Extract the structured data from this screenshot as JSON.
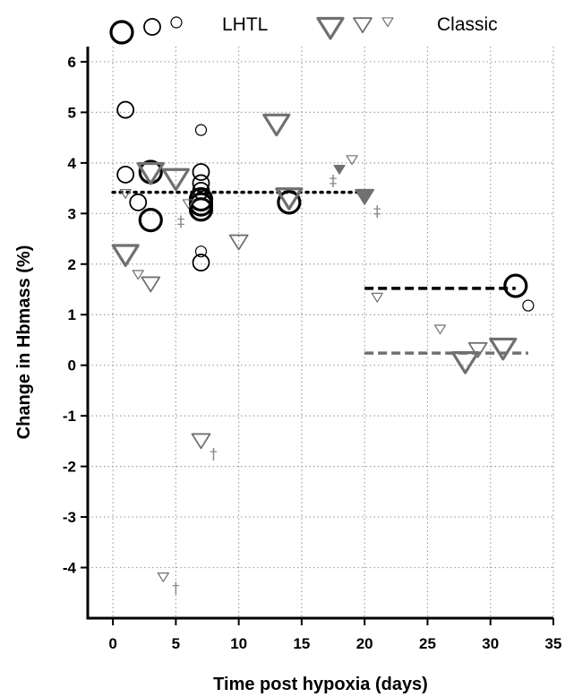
{
  "chart_data": {
    "type": "scatter",
    "title": "",
    "xlabel": "Time post hypoxia  (days)",
    "ylabel": "Change in Hbmass (%)",
    "xlim": [
      -2,
      35
    ],
    "ylim": [
      -5,
      6.3
    ],
    "xticks": [
      0,
      5,
      10,
      15,
      20,
      25,
      30,
      35
    ],
    "yticks": [
      -4,
      -3,
      -2,
      -1,
      0,
      1,
      2,
      3,
      4,
      5,
      6
    ],
    "grid": true,
    "legend": {
      "placement": "top",
      "entries": [
        {
          "label": "LHTL",
          "marker": "circle",
          "sizes": [
            "large",
            "medium",
            "small"
          ]
        },
        {
          "label": "Classic",
          "marker": "triangle-down",
          "sizes": [
            "large",
            "medium",
            "small"
          ]
        }
      ]
    },
    "colors": {
      "lhtl": "#000000",
      "classic": "#707070",
      "dagger": "#8a8a8a",
      "grid": "#a0a0a0"
    },
    "series": [
      {
        "name": "LHTL",
        "marker": "circle",
        "points": [
          {
            "x": 1,
            "y": 5.05,
            "size": "medium"
          },
          {
            "x": 1,
            "y": 3.77,
            "size": "medium"
          },
          {
            "x": 2,
            "y": 3.22,
            "size": "medium"
          },
          {
            "x": 3,
            "y": 3.82,
            "size": "large"
          },
          {
            "x": 3,
            "y": 2.87,
            "size": "large"
          },
          {
            "x": 7,
            "y": 3.82,
            "size": "medium"
          },
          {
            "x": 7,
            "y": 3.6,
            "size": "medium"
          },
          {
            "x": 7,
            "y": 3.45,
            "size": "medium"
          },
          {
            "x": 7,
            "y": 3.28,
            "size": "large"
          },
          {
            "x": 7,
            "y": 3.18,
            "size": "large"
          },
          {
            "x": 7,
            "y": 3.08,
            "size": "large"
          },
          {
            "x": 7,
            "y": 4.65,
            "size": "small"
          },
          {
            "x": 7,
            "y": 2.25,
            "size": "small"
          },
          {
            "x": 7,
            "y": 2.03,
            "size": "medium"
          },
          {
            "x": 14,
            "y": 3.22,
            "size": "large"
          },
          {
            "x": 32,
            "y": 1.57,
            "size": "large"
          },
          {
            "x": 33,
            "y": 1.18,
            "size": "small"
          }
        ]
      },
      {
        "name": "Classic",
        "marker": "triangle-down",
        "points": [
          {
            "x": 1,
            "y": 2.2,
            "size": "large"
          },
          {
            "x": 1,
            "y": 3.4,
            "size": "small"
          },
          {
            "x": 2,
            "y": 1.8,
            "size": "small"
          },
          {
            "x": 3,
            "y": 3.82,
            "size": "large"
          },
          {
            "x": 3,
            "y": 1.62,
            "size": "medium"
          },
          {
            "x": 5,
            "y": 3.7,
            "size": "large"
          },
          {
            "x": 6,
            "y": 3.2,
            "size": "small"
          },
          {
            "x": 7,
            "y": -1.48,
            "size": "medium"
          },
          {
            "x": 10,
            "y": 2.45,
            "size": "medium"
          },
          {
            "x": 13,
            "y": 4.78,
            "size": "large"
          },
          {
            "x": 14,
            "y": 3.32,
            "size": "large"
          },
          {
            "x": 4,
            "y": -4.18,
            "size": "small"
          },
          {
            "x": 18,
            "y": 3.88,
            "size": "small",
            "filled": true
          },
          {
            "x": 19,
            "y": 4.07,
            "size": "small"
          },
          {
            "x": 20,
            "y": 3.35,
            "size": "medium",
            "filled": true
          },
          {
            "x": 21,
            "y": 1.35,
            "size": "small"
          },
          {
            "x": 26,
            "y": 0.72,
            "size": "small"
          },
          {
            "x": 28,
            "y": 0.08,
            "size": "large"
          },
          {
            "x": 29,
            "y": 0.32,
            "size": "medium"
          },
          {
            "x": 31,
            "y": 0.35,
            "size": "large"
          }
        ]
      }
    ],
    "annotations": [
      {
        "symbol": "‡",
        "x": 17.5,
        "y": 3.65
      },
      {
        "symbol": "‡",
        "x": 5.4,
        "y": 2.85
      },
      {
        "symbol": "‡",
        "x": 21,
        "y": 3.05
      },
      {
        "symbol": "†",
        "x": 8,
        "y": -1.75
      },
      {
        "symbol": "†",
        "x": 5,
        "y": -4.4
      }
    ],
    "reference_lines": [
      {
        "group": "LHTL",
        "style": "dotted",
        "x": [
          0,
          20
        ],
        "y": 3.42
      },
      {
        "group": "LHTL",
        "style": "dashed",
        "x": [
          20,
          32
        ],
        "y": 1.52
      },
      {
        "group": "Classic",
        "style": "dashed",
        "x": [
          20,
          33
        ],
        "y": 0.24
      }
    ]
  }
}
